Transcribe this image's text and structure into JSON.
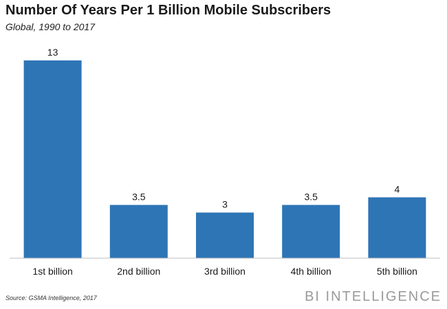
{
  "header": {
    "title": "Number Of Years Per 1 Billion Mobile Subscribers",
    "subtitle": "Global, 1990 to 2017"
  },
  "footer": {
    "source": "Source: GSMA Intelligence, 2017",
    "brand": "BI INTELLIGENCE"
  },
  "colors": {
    "bar": "#2e75b6",
    "axis": "#bfbfbf",
    "text": "#1a1a1a"
  },
  "chart_data": {
    "type": "bar",
    "title": "Number Of Years Per 1 Billion Mobile Subscribers",
    "subtitle": "Global, 1990 to 2017",
    "categories": [
      "1st billion",
      "2nd billion",
      "3rd billion",
      "4th billion",
      "5th billion"
    ],
    "values": [
      13,
      3.5,
      3,
      3.5,
      4
    ],
    "data_labels": [
      "13",
      "3.5",
      "3",
      "3.5",
      "4"
    ],
    "xlabel": "",
    "ylabel": "",
    "ylim": [
      0,
      13
    ],
    "grid": false,
    "legend": "none"
  }
}
